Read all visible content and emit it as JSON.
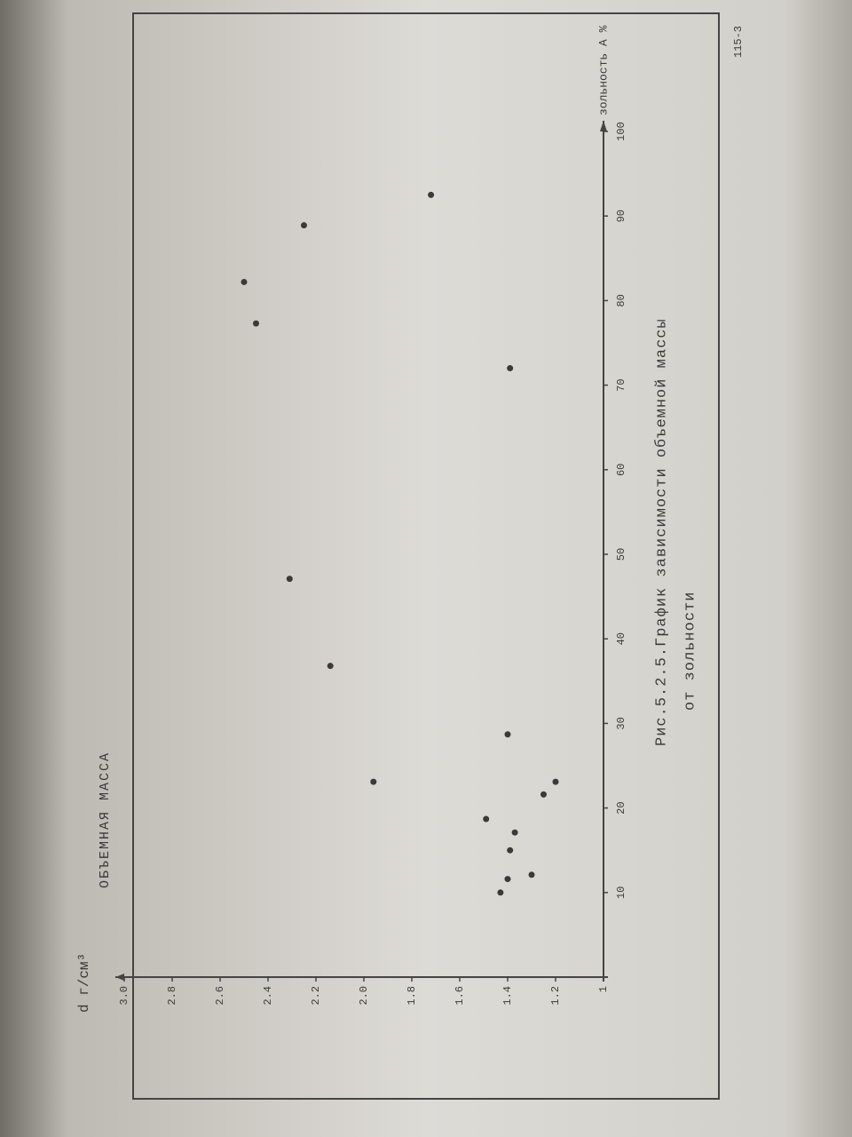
{
  "chart_data": {
    "type": "scatter",
    "title": "Рис.5.2.5.График зависимости объемной массы",
    "subtitle": "от зольности",
    "y_label": "ОБЪЕМНАЯ МАССА",
    "y_unit": "d г/см³",
    "x_label": "зольность А %",
    "page_number": "115-3",
    "x": [
      10,
      11.6,
      12.1,
      15,
      17.1,
      18.7,
      21.6,
      23.1,
      23.1,
      28.7,
      36.8,
      47.1,
      72,
      77.3,
      82.2,
      88.9,
      92.5
    ],
    "values": [
      1.43,
      1.4,
      1.3,
      1.39,
      1.37,
      1.49,
      1.25,
      1.2,
      1.96,
      1.4,
      2.14,
      2.31,
      1.39,
      2.45,
      2.5,
      2.25,
      1.72
    ],
    "color": "#3a3a3a",
    "xlim": [
      0,
      100
    ],
    "xticks": [
      10,
      20,
      30,
      40,
      50,
      60,
      70,
      80,
      90,
      100
    ],
    "ylim": [
      1,
      3
    ],
    "yticks": [
      1,
      1.2,
      1.4,
      1.6,
      1.8,
      {
        "value": 2,
        "label": "2.0"
      },
      2.2,
      2.4,
      2.6,
      2.8,
      {
        "value": 3,
        "label": "3.0"
      }
    ]
  }
}
